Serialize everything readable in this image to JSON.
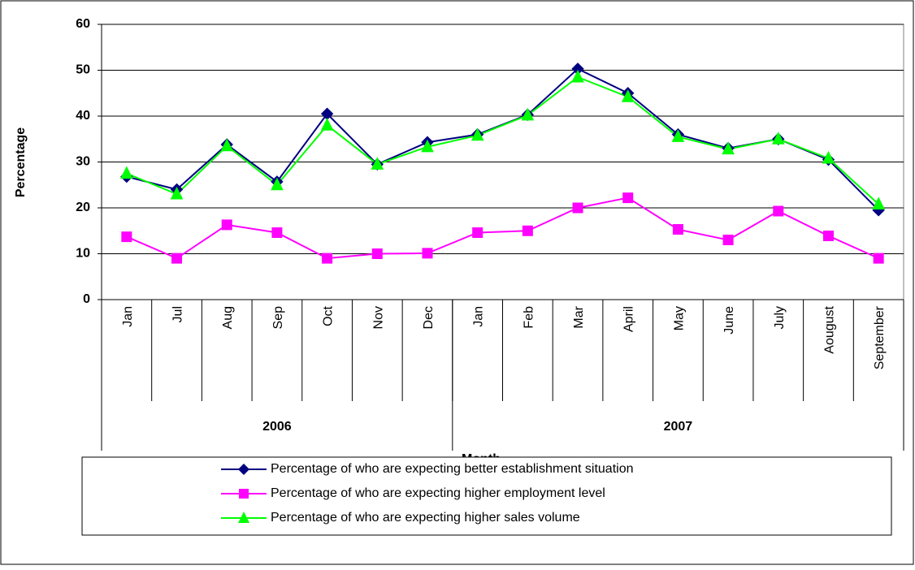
{
  "chart_data": {
    "type": "line",
    "ylabel": "Percentage",
    "xlabel": "Month",
    "categories": [
      "Jan",
      "Jul",
      "Aug",
      "Sep",
      "Oct",
      "Nov",
      "Dec",
      "Jan",
      "Feb",
      "Mar",
      "April",
      "May",
      "June",
      "July",
      "Aougust",
      "September"
    ],
    "category_groups": [
      {
        "label": "2006",
        "span": 7
      },
      {
        "label": "2007",
        "span": 9
      }
    ],
    "series": [
      {
        "name": "Percentage of who are expecting better establishment situation",
        "color": "#000080",
        "marker": "diamond",
        "values": [
          26.8,
          24,
          33.8,
          25.7,
          40.5,
          29.5,
          34.3,
          36,
          40.3,
          50.3,
          45,
          36,
          33,
          35,
          30.5,
          19.5
        ]
      },
      {
        "name": "Percentage of who are expecting higher employment level",
        "color": "#ff00ff",
        "marker": "square",
        "values": [
          13.7,
          9,
          16.3,
          14.6,
          9,
          10,
          10.1,
          14.6,
          15,
          20,
          22.2,
          15.3,
          13,
          19.3,
          13.9,
          9
        ]
      },
      {
        "name": "Percentage of who are expecting higher sales volume",
        "color": "#00ff00",
        "marker": "triangle",
        "values": [
          27.5,
          23,
          33.5,
          25,
          38,
          29.5,
          33.3,
          35.8,
          40.2,
          48.5,
          44.2,
          35.5,
          32.8,
          35,
          30.8,
          20.8
        ]
      }
    ],
    "ylim": [
      0,
      60
    ],
    "yticks": [
      0,
      10,
      20,
      30,
      40,
      50,
      60
    ],
    "grid": true,
    "legend": "bottom"
  }
}
